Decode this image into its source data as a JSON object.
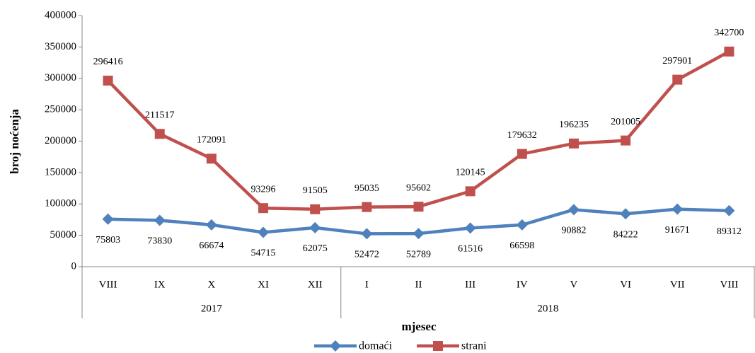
{
  "chart_data": {
    "type": "line",
    "categories": [
      "VIII",
      "IX",
      "X",
      "XI",
      "XII",
      "I",
      "II",
      "III",
      "IV",
      "V",
      "VI",
      "VII",
      "VIII"
    ],
    "category_groups": [
      {
        "label": "2017",
        "count": 5
      },
      {
        "label": "2018",
        "count": 8
      }
    ],
    "series": [
      {
        "name": "domaći",
        "color": "#4f81bd",
        "marker": "diamond",
        "values": [
          75803,
          73830,
          66674,
          54715,
          62075,
          52472,
          52789,
          61516,
          66598,
          90882,
          84222,
          91671,
          89312
        ]
      },
      {
        "name": "strani",
        "color": "#c0504d",
        "marker": "square",
        "values": [
          296416,
          211517,
          172091,
          93296,
          91505,
          95035,
          95602,
          120145,
          179632,
          196235,
          201005,
          297901,
          342700
        ]
      }
    ],
    "ylim": [
      0,
      400000
    ],
    "yticks": [
      0,
      50000,
      100000,
      150000,
      200000,
      250000,
      300000,
      350000,
      400000
    ],
    "ylabel": "broj noćenja",
    "xlabel": "mjesec",
    "grid": false,
    "legend": "bottom"
  }
}
